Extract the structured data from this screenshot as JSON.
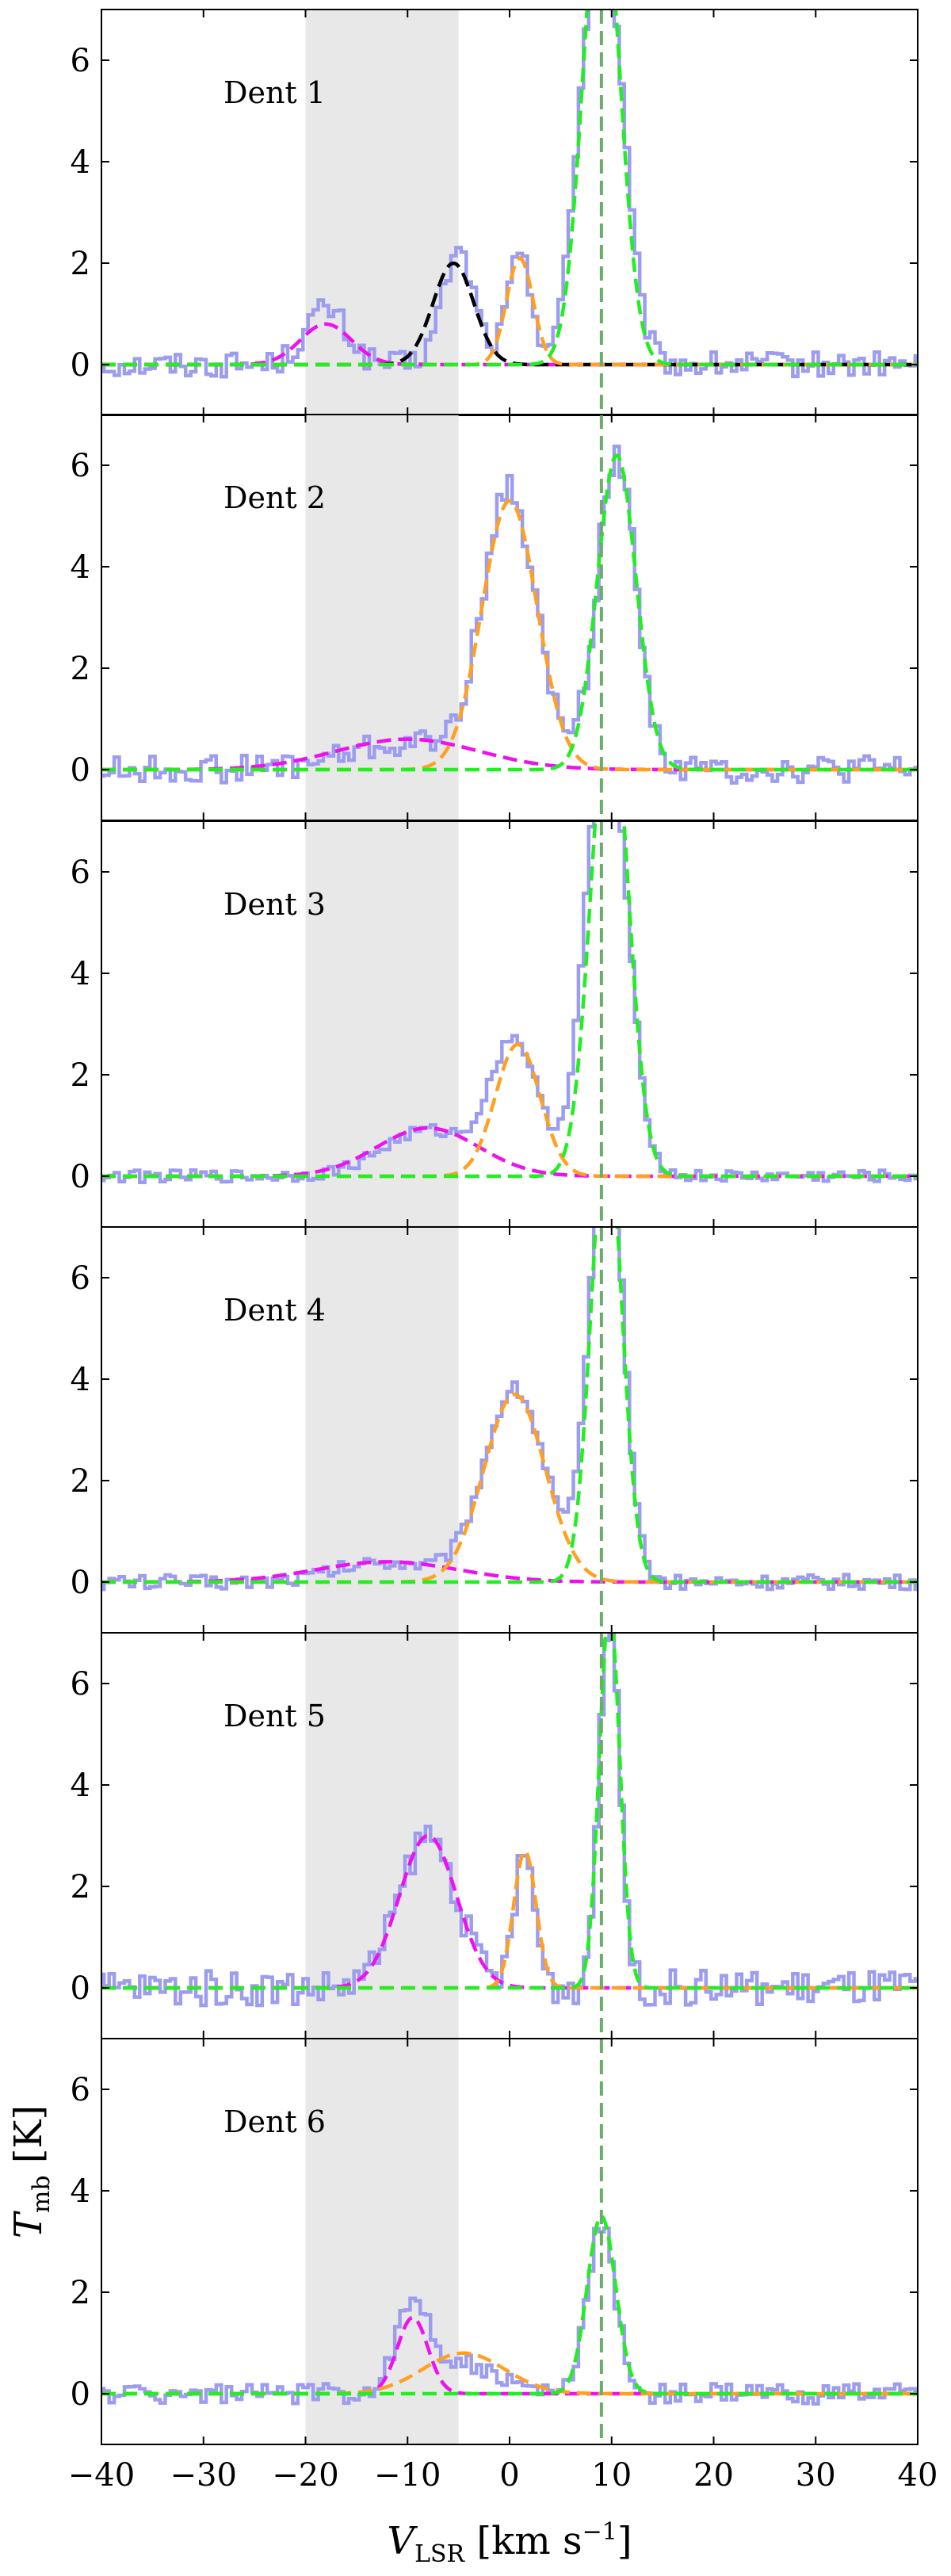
{
  "figure": {
    "xlabel": "V_LSR [km s^-1]",
    "ylabel": "T_mb [K]",
    "x_ticks": [
      -40,
      -30,
      -20,
      -10,
      0,
      10,
      20,
      30,
      40
    ],
    "y_ticks": [
      0,
      2,
      4,
      6
    ],
    "xlim": [
      -40,
      40
    ],
    "ylim": [
      -1,
      7
    ],
    "shaded_range": [
      -20,
      -5
    ],
    "vline_x": 9,
    "colors": {
      "spectrum": "#9d9df0",
      "shade": "#e8e8e8",
      "vline": "#6aad6a",
      "magenta": "#ee11ee",
      "orange": "#ffa020",
      "green": "#22ee22",
      "black": "#000000"
    }
  },
  "chart_data": [
    {
      "type": "line",
      "panel_label": "Dent 1",
      "xlim": [
        -40,
        40
      ],
      "ylim": [
        -1,
        7
      ],
      "spectrum": {
        "peaks": [
          [
            -18,
            1.1,
            2.0
          ],
          [
            -5,
            2.2,
            1.6
          ],
          [
            1,
            2.1,
            1.2
          ],
          [
            9,
            9.0,
            2.0
          ]
        ],
        "noise": 0.25
      },
      "components": [
        {
          "color_key": "magenta",
          "amp": 0.8,
          "center": -18,
          "sigma": 2.5
        },
        {
          "color_key": "black",
          "amp": 2.0,
          "center": -5.5,
          "sigma": 2.0
        },
        {
          "color_key": "orange",
          "amp": 2.1,
          "center": 1,
          "sigma": 1.3
        },
        {
          "color_key": "green",
          "amp": 9.5,
          "center": 9,
          "sigma": 1.8
        }
      ]
    },
    {
      "type": "line",
      "panel_label": "Dent 2",
      "xlim": [
        -40,
        40
      ],
      "ylim": [
        -1,
        7
      ],
      "spectrum": {
        "peaks": [
          [
            -10,
            0.5,
            6
          ],
          [
            0,
            5.4,
            2.6
          ],
          [
            10.5,
            6.2,
            1.9
          ]
        ],
        "noise": 0.28
      },
      "components": [
        {
          "color_key": "magenta",
          "amp": 0.6,
          "center": -10,
          "sigma": 7
        },
        {
          "color_key": "orange",
          "amp": 5.3,
          "center": 0,
          "sigma": 2.7
        },
        {
          "color_key": "green",
          "amp": 6.2,
          "center": 10.5,
          "sigma": 1.9
        }
      ]
    },
    {
      "type": "line",
      "panel_label": "Dent 3",
      "xlim": [
        -40,
        40
      ],
      "ylim": [
        -1,
        7
      ],
      "spectrum": {
        "peaks": [
          [
            -8,
            0.9,
            4.5
          ],
          [
            0.5,
            2.6,
            2.3
          ],
          [
            9.5,
            9.0,
            2.0
          ]
        ],
        "noise": 0.12
      },
      "components": [
        {
          "color_key": "magenta",
          "amp": 0.95,
          "center": -8,
          "sigma": 5
        },
        {
          "color_key": "orange",
          "amp": 2.6,
          "center": 0.8,
          "sigma": 2.2
        },
        {
          "color_key": "green",
          "amp": 9.5,
          "center": 9.8,
          "sigma": 1.8
        }
      ]
    },
    {
      "type": "line",
      "panel_label": "Dent 4",
      "xlim": [
        -40,
        40
      ],
      "ylim": [
        -1,
        7
      ],
      "spectrum": {
        "peaks": [
          [
            -12,
            0.4,
            5
          ],
          [
            0.5,
            3.8,
            3.0
          ],
          [
            9.5,
            9.0,
            1.6
          ]
        ],
        "noise": 0.15
      },
      "components": [
        {
          "color_key": "magenta",
          "amp": 0.4,
          "center": -12,
          "sigma": 7
        },
        {
          "color_key": "orange",
          "amp": 3.7,
          "center": 0.5,
          "sigma": 3.0
        },
        {
          "color_key": "green",
          "amp": 9.0,
          "center": 9.5,
          "sigma": 1.5
        }
      ]
    },
    {
      "type": "line",
      "panel_label": "Dent 5",
      "xlim": [
        -40,
        40
      ],
      "ylim": [
        -1,
        7
      ],
      "spectrum": {
        "peaks": [
          [
            -8,
            3.0,
            2.8
          ],
          [
            1.5,
            2.6,
            1.0
          ],
          [
            9.8,
            7.5,
            1.0
          ]
        ],
        "noise": 0.35
      },
      "components": [
        {
          "color_key": "magenta",
          "amp": 3.0,
          "center": -8,
          "sigma": 2.8
        },
        {
          "color_key": "orange",
          "amp": 2.7,
          "center": 1.5,
          "sigma": 1.1
        },
        {
          "color_key": "green",
          "amp": 7.5,
          "center": 9.8,
          "sigma": 1.0
        }
      ]
    },
    {
      "type": "line",
      "panel_label": "Dent 6",
      "xlim": [
        -40,
        40
      ],
      "ylim": [
        -1,
        7
      ],
      "spectrum": {
        "peaks": [
          [
            -9.5,
            1.6,
            1.6
          ],
          [
            -5,
            0.6,
            3.5
          ],
          [
            9,
            3.3,
            1.4
          ]
        ],
        "noise": 0.2
      },
      "components": [
        {
          "color_key": "magenta",
          "amp": 1.5,
          "center": -9.5,
          "sigma": 1.5
        },
        {
          "color_key": "orange",
          "amp": 0.8,
          "center": -4.5,
          "sigma": 4.0
        },
        {
          "color_key": "green",
          "amp": 3.5,
          "center": 9,
          "sigma": 1.4
        }
      ]
    }
  ]
}
